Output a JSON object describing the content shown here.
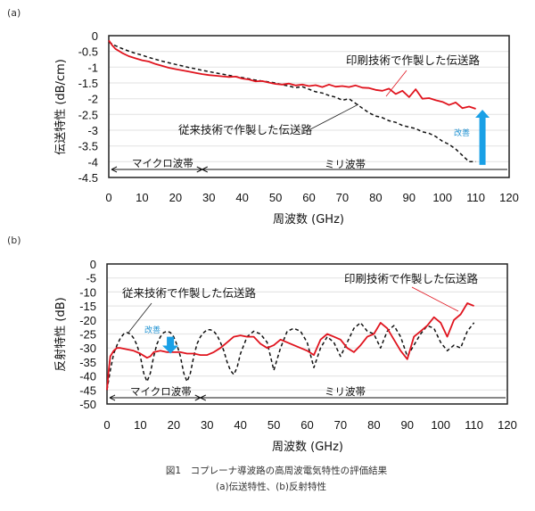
{
  "colors": {
    "printed": "#e0141e",
    "conventional": "#111111",
    "improve_arrow": "#1aa0e6",
    "improve_text": "#1a8fd0",
    "grid": "#e6e6e6"
  },
  "caption": {
    "line1": "図1　コプレーナ導波路の高周波電気特性の評価結果",
    "line2": "(a)伝送特性、(b)反射特性"
  },
  "chart_data": [
    {
      "panel_label": "(a)",
      "type": "line",
      "title": "",
      "xlabel": "周波数 (GHz)",
      "ylabel": "伝送特性 (dB/cm)",
      "xlim": [
        0,
        120
      ],
      "ylim": [
        -4.5,
        0
      ],
      "xticks": [
        0,
        10,
        20,
        30,
        40,
        50,
        60,
        70,
        80,
        90,
        100,
        110,
        120
      ],
      "yticks": [
        0,
        -0.5,
        -1,
        -1.5,
        -2,
        -2.5,
        -3,
        -3.5,
        -4,
        -4.5
      ],
      "ytick_labels": [
        "0",
        "-0.5",
        "-1",
        "-1.5",
        "-2",
        "-2.5",
        "-3",
        "-3.5",
        "-4",
        "-4.5"
      ],
      "grid": true,
      "series": [
        {
          "name": "印刷技術で作製した伝送路",
          "style": "solid",
          "x": [
            0,
            1,
            2,
            4,
            6,
            8,
            10,
            12,
            14,
            16,
            18,
            20,
            22,
            24,
            26,
            28,
            30,
            32,
            34,
            36,
            38,
            40,
            42,
            44,
            46,
            48,
            50,
            52,
            54,
            56,
            58,
            60,
            62,
            64,
            66,
            68,
            70,
            72,
            74,
            76,
            78,
            80,
            82,
            84,
            86,
            88,
            90,
            92,
            94,
            96,
            98,
            100,
            102,
            104,
            106,
            108,
            110
          ],
          "y": [
            -0.15,
            -0.3,
            -0.42,
            -0.55,
            -0.65,
            -0.72,
            -0.78,
            -0.82,
            -0.9,
            -0.96,
            -1.02,
            -1.06,
            -1.1,
            -1.14,
            -1.18,
            -1.22,
            -1.25,
            -1.27,
            -1.29,
            -1.31,
            -1.3,
            -1.36,
            -1.39,
            -1.45,
            -1.44,
            -1.49,
            -1.53,
            -1.55,
            -1.52,
            -1.58,
            -1.55,
            -1.6,
            -1.57,
            -1.63,
            -1.55,
            -1.62,
            -1.6,
            -1.63,
            -1.58,
            -1.65,
            -1.66,
            -1.72,
            -1.75,
            -1.68,
            -1.85,
            -1.75,
            -1.95,
            -1.7,
            -2.0,
            -1.98,
            -2.05,
            -2.1,
            -2.2,
            -2.12,
            -2.3,
            -2.25,
            -2.32
          ]
        },
        {
          "name": "従来技術で作製した伝送路",
          "style": "dashed",
          "x": [
            0,
            2,
            4,
            6,
            8,
            10,
            12,
            14,
            16,
            18,
            20,
            22,
            24,
            26,
            28,
            30,
            32,
            34,
            36,
            38,
            40,
            42,
            44,
            46,
            48,
            50,
            52,
            54,
            56,
            58,
            60,
            62,
            64,
            66,
            68,
            70,
            72,
            74,
            76,
            78,
            80,
            82,
            84,
            86,
            88,
            90,
            92,
            94,
            96,
            98,
            100,
            102,
            104,
            106,
            108,
            110
          ],
          "y": [
            -0.2,
            -0.32,
            -0.41,
            -0.49,
            -0.56,
            -0.62,
            -0.69,
            -0.75,
            -0.81,
            -0.86,
            -0.91,
            -0.96,
            -1.01,
            -1.05,
            -1.1,
            -1.14,
            -1.18,
            -1.22,
            -1.26,
            -1.3,
            -1.33,
            -1.37,
            -1.41,
            -1.44,
            -1.47,
            -1.5,
            -1.56,
            -1.6,
            -1.65,
            -1.62,
            -1.7,
            -1.78,
            -1.82,
            -1.9,
            -1.95,
            -2.05,
            -2.0,
            -2.15,
            -2.3,
            -2.45,
            -2.55,
            -2.6,
            -2.7,
            -2.75,
            -2.85,
            -2.9,
            -2.95,
            -3.05,
            -3.1,
            -3.2,
            -3.35,
            -3.45,
            -3.6,
            -3.8,
            -4.0,
            -4.0
          ]
        }
      ],
      "annotations": [
        {
          "text": "印刷技術で作製した伝送路",
          "points_to": "printed"
        },
        {
          "text": "従来技術で作製した伝送路",
          "points_to": "conventional"
        },
        {
          "text": "改善",
          "arrow": "up",
          "x": 112,
          "from": -4.1,
          "to": -2.35
        }
      ],
      "bands": [
        {
          "label": "マイクロ波帯",
          "range": [
            0,
            28
          ]
        },
        {
          "label": "ミリ波帯",
          "range": [
            28,
            120
          ]
        }
      ]
    },
    {
      "panel_label": "(b)",
      "type": "line",
      "title": "",
      "xlabel": "周波数 (GHz)",
      "ylabel": "反射特性 (dB)",
      "xlim": [
        0,
        120
      ],
      "ylim": [
        -50,
        0
      ],
      "xticks": [
        0,
        10,
        20,
        30,
        40,
        50,
        60,
        70,
        80,
        90,
        100,
        110,
        120
      ],
      "yticks": [
        0,
        -5,
        -10,
        -15,
        -20,
        -25,
        -30,
        -35,
        -40,
        -45,
        -50
      ],
      "ytick_labels": [
        "0",
        "-5",
        "-10",
        "-15",
        "-20",
        "-25",
        "-30",
        "-35",
        "-40",
        "-45",
        "-50"
      ],
      "grid": true,
      "series": [
        {
          "name": "印刷技術で作製した伝送路",
          "style": "solid",
          "x": [
            0,
            0.5,
            1,
            2,
            3,
            4,
            6,
            8,
            10,
            12,
            13,
            14,
            16,
            18,
            20,
            22,
            24,
            26,
            28,
            30,
            32,
            34,
            36,
            38,
            40,
            42,
            44,
            46,
            48,
            50,
            52,
            54,
            56,
            58,
            60,
            62,
            64,
            66,
            68,
            70,
            72,
            74,
            76,
            78,
            80,
            82,
            84,
            86,
            88,
            90,
            92,
            94,
            96,
            98,
            100,
            102,
            104,
            106,
            108,
            110
          ],
          "y": [
            -45,
            -38,
            -33,
            -31,
            -30,
            -30,
            -30.5,
            -31,
            -32,
            -33.5,
            -33,
            -31.5,
            -31,
            -31.5,
            -31.5,
            -31.5,
            -32,
            -32,
            -32.5,
            -32.5,
            -31.5,
            -30,
            -28,
            -26,
            -25.5,
            -26,
            -26,
            -28.5,
            -30,
            -29,
            -27,
            -28,
            -29,
            -30,
            -31,
            -32.5,
            -27,
            -25,
            -26,
            -27,
            -30,
            -31.5,
            -29,
            -26,
            -25,
            -21,
            -23,
            -27,
            -31,
            -34,
            -26,
            -24,
            -22,
            -19,
            -21,
            -26,
            -20,
            -18,
            -14,
            -15
          ]
        },
        {
          "name": "従来技術で作製した伝送路",
          "style": "dashed",
          "x": [
            0,
            1,
            2,
            3,
            4,
            5,
            6,
            7,
            8,
            9,
            10,
            11,
            12,
            13,
            14,
            15,
            16,
            17,
            18,
            19,
            20,
            21,
            22,
            23,
            24,
            25,
            26,
            27,
            28,
            29,
            30,
            31,
            32,
            33,
            34,
            35,
            36,
            37,
            38,
            39,
            40,
            42,
            44,
            46,
            48,
            50,
            52,
            54,
            56,
            58,
            60,
            62,
            64,
            66,
            68,
            70,
            72,
            74,
            76,
            78,
            80,
            82,
            84,
            86,
            88,
            90,
            92,
            94,
            96,
            98,
            100,
            102,
            104,
            106,
            108,
            110
          ],
          "y": [
            -45,
            -38,
            -32,
            -29,
            -26.5,
            -25,
            -24.5,
            -25,
            -26.5,
            -29,
            -33,
            -39,
            -42,
            -39,
            -33,
            -28.5,
            -26,
            -24.5,
            -24,
            -24.5,
            -26,
            -29,
            -33,
            -39,
            -42,
            -39,
            -33,
            -28.5,
            -26,
            -24.5,
            -23.5,
            -23.5,
            -24,
            -25.5,
            -28,
            -31,
            -35,
            -38,
            -39.5,
            -37,
            -32,
            -26,
            -24,
            -25,
            -28,
            -38,
            -30,
            -24,
            -23,
            -24,
            -28,
            -37,
            -30,
            -26,
            -28,
            -33,
            -28,
            -23,
            -21,
            -24,
            -25,
            -30,
            -24,
            -22,
            -26,
            -33,
            -29,
            -25,
            -22,
            -23,
            -28,
            -31,
            -29,
            -30,
            -24,
            -21
          ]
        }
      ],
      "annotations": [
        {
          "text": "印刷技術で作製した伝送路",
          "points_to": "printed"
        },
        {
          "text": "従来技術で作製した伝送路",
          "points_to": "conventional"
        },
        {
          "text": "改善",
          "arrow": "down",
          "x": 19,
          "from": -26,
          "to": -32
        }
      ],
      "bands": [
        {
          "label": "マイクロ波帯",
          "range": [
            0,
            28
          ]
        },
        {
          "label": "ミリ波帯",
          "range": [
            28,
            120
          ]
        }
      ]
    }
  ]
}
